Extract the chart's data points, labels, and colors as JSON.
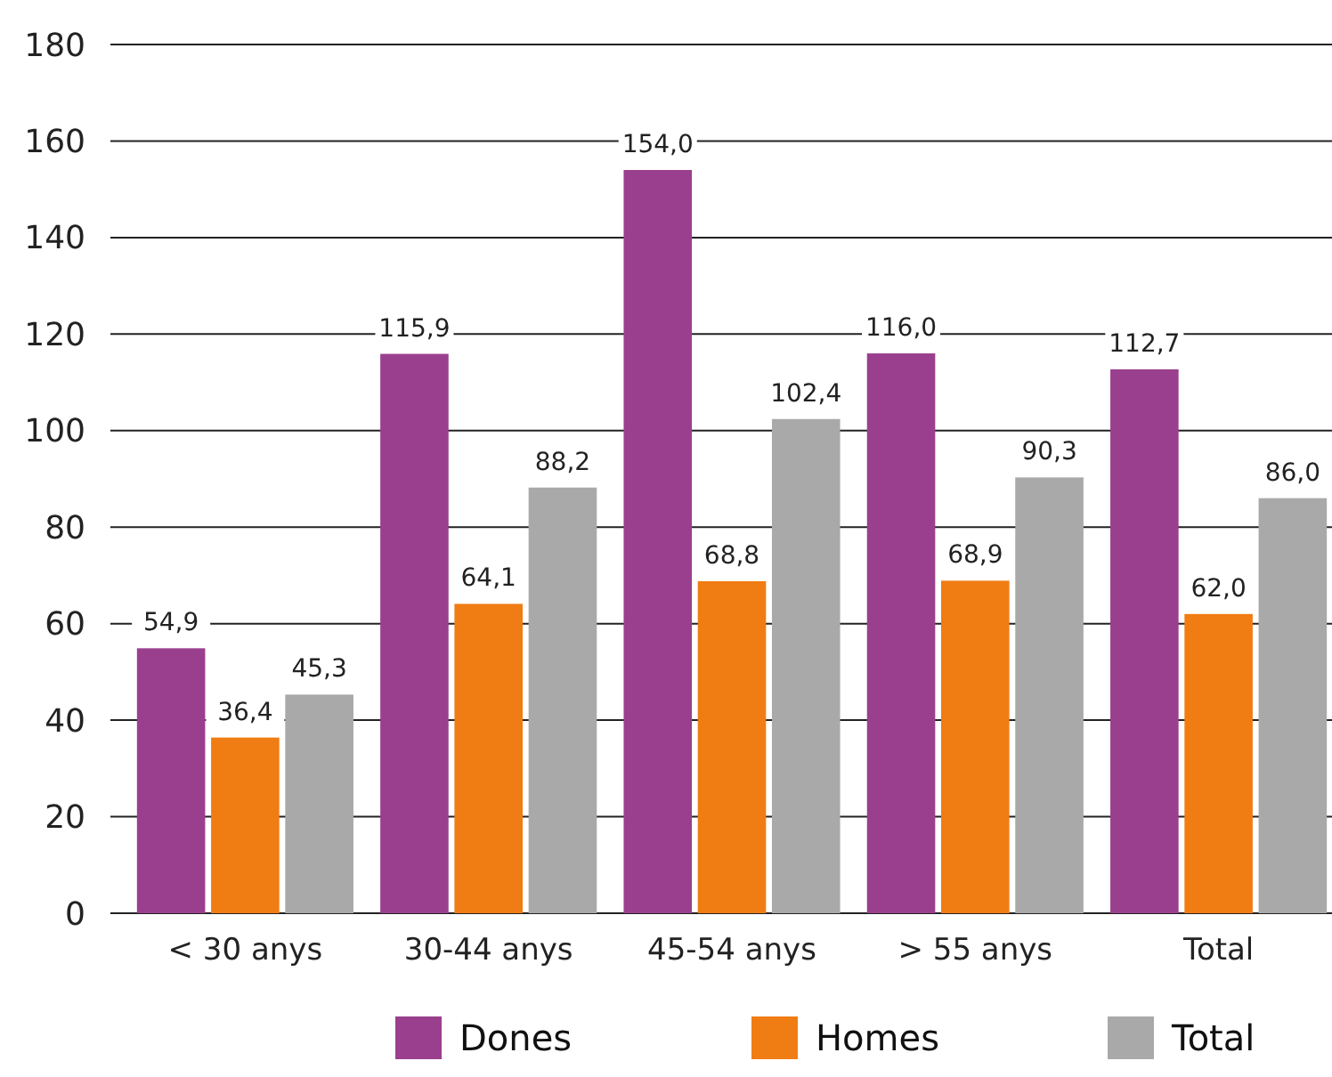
{
  "chart_data": {
    "type": "bar",
    "categories": [
      "< 30 anys",
      "30-44 anys",
      "45-54 anys",
      "> 55 anys",
      "Total"
    ],
    "series": [
      {
        "name": "Dones",
        "color": "#9a3f8e",
        "values": [
          54.9,
          115.9,
          154.0,
          116.0,
          112.7
        ],
        "value_labels": [
          "54,9",
          "115,9",
          "154,0",
          "116,0",
          "112,7"
        ]
      },
      {
        "name": "Homes",
        "color": "#f07c14",
        "values": [
          36.4,
          64.1,
          68.8,
          68.9,
          62.0
        ],
        "value_labels": [
          "36,4",
          "64,1",
          "68,8",
          "68,9",
          "62,0"
        ]
      },
      {
        "name": "Total",
        "color": "#a9a9a9",
        "values": [
          45.3,
          88.2,
          102.4,
          90.3,
          86.0
        ],
        "value_labels": [
          "45,3",
          "88,2",
          "102,4",
          "90,3",
          "86,0"
        ]
      }
    ],
    "ylim": [
      0,
      180
    ],
    "yticks": [
      0,
      20,
      40,
      60,
      80,
      100,
      120,
      140,
      160,
      180
    ],
    "grid": "y",
    "legend": "bottom"
  }
}
